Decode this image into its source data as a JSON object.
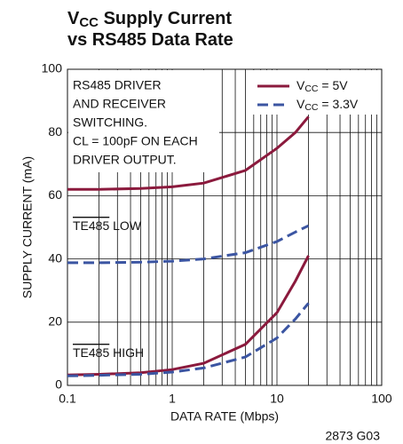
{
  "chart_data": {
    "type": "line",
    "title": [
      [
        {
          "t": "V"
        },
        {
          "t": "CC",
          "sub": true
        },
        {
          "t": " Supply Current"
        }
      ],
      [
        {
          "t": "vs RS485 Data Rate"
        }
      ]
    ],
    "xlabel": "DATA RATE (Mbps)",
    "ylabel": "SUPPLY CURRENT (mA)",
    "footnote": "2873 G03",
    "xscale": "log",
    "xlim": [
      0.1,
      100
    ],
    "xticks": [
      0.1,
      1,
      10,
      100
    ],
    "xminor": [
      0.2,
      0.3,
      0.4,
      0.5,
      0.6,
      0.7,
      0.8,
      0.9,
      2,
      3,
      4,
      5,
      6,
      7,
      8,
      9,
      20,
      30,
      40,
      50,
      60,
      70,
      80,
      90
    ],
    "ylim": [
      0,
      100
    ],
    "yticks": [
      0,
      20,
      40,
      60,
      80,
      100
    ],
    "grid": true,
    "note": [
      "RS485 DRIVER",
      "AND RECEIVER",
      "SWITCHING.",
      "CL = 100pF ON EACH",
      "DRIVER OUTPUT."
    ],
    "annotations": [
      [
        {
          "t": "TE485",
          "over": true
        },
        {
          "t": " LOW"
        }
      ],
      [
        {
          "t": "TE485",
          "over": true
        },
        {
          "t": " HIGH"
        }
      ]
    ],
    "x": [
      0.1,
      0.2,
      0.5,
      1,
      2,
      5,
      10,
      15,
      20
    ],
    "series": [
      {
        "name": [
          {
            "t": "V"
          },
          {
            "t": "CC",
            "sub": true
          },
          {
            "t": " = 5V"
          }
        ],
        "color": "#8b1a3d",
        "dash": false,
        "values_low": [
          62,
          62,
          62.3,
          62.8,
          64,
          68,
          75,
          80,
          85
        ],
        "values_high": [
          3.3,
          3.5,
          4,
          5,
          7,
          13,
          23,
          33,
          41
        ]
      },
      {
        "name": [
          {
            "t": "V"
          },
          {
            "t": "CC",
            "sub": true
          },
          {
            "t": " = 3.3V"
          }
        ],
        "color": "#3b55a2",
        "dash": true,
        "values_low": [
          38.8,
          38.8,
          39,
          39.3,
          40,
          42,
          45.5,
          48.5,
          50.5
        ],
        "values_high": [
          3,
          3.2,
          3.5,
          4.2,
          5.5,
          9,
          15,
          21,
          26
        ]
      }
    ]
  }
}
